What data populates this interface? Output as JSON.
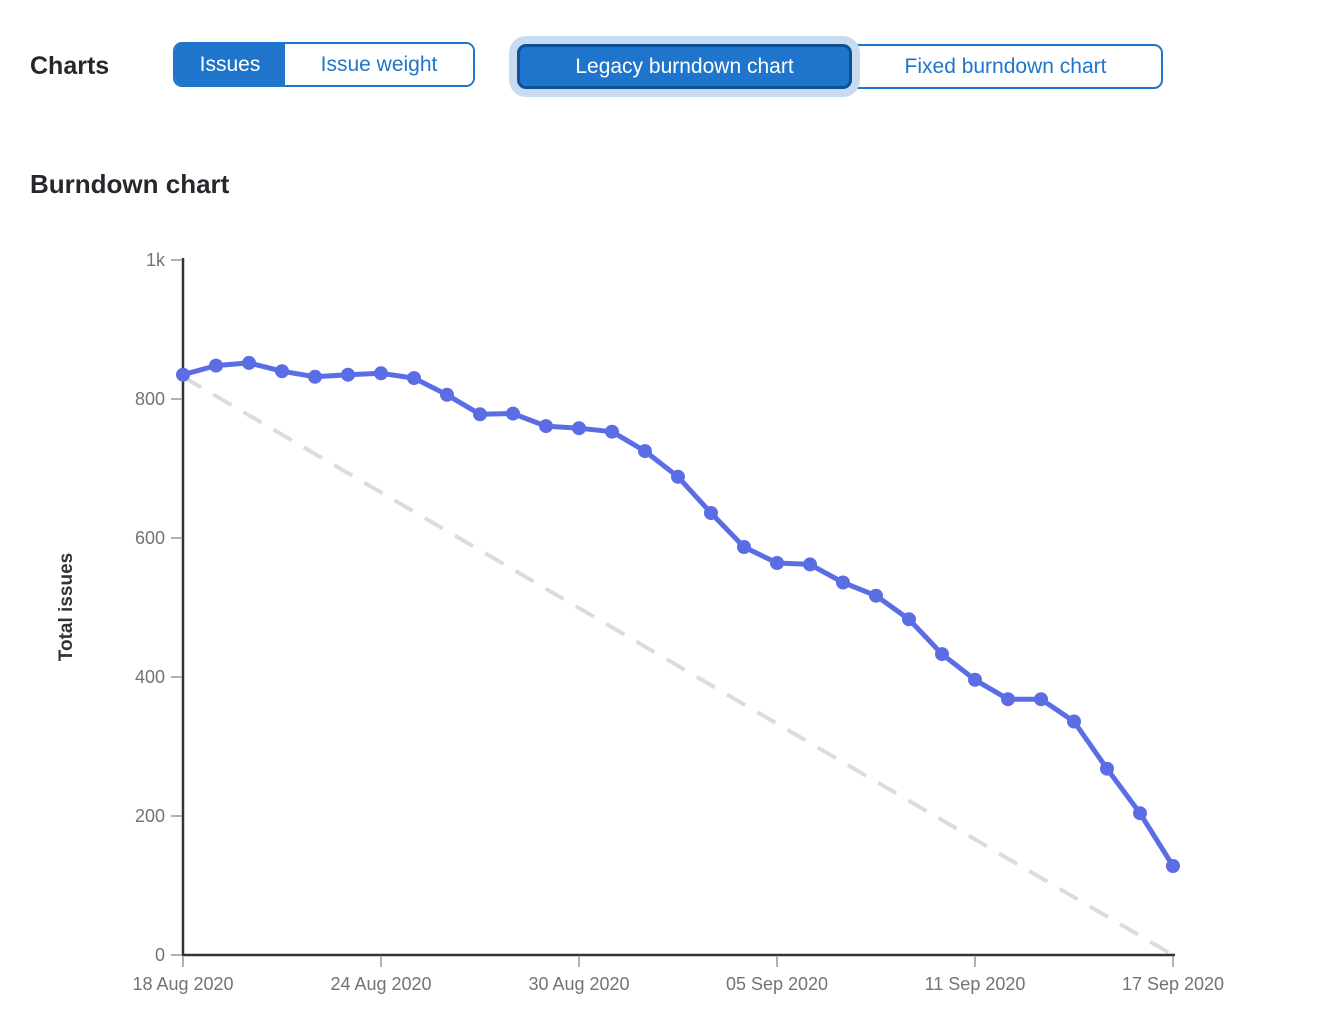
{
  "header": {
    "charts_label": "Charts",
    "metric_toggle": {
      "options": [
        {
          "label": "Issues",
          "selected": true
        },
        {
          "label": "Issue weight",
          "selected": false
        }
      ]
    },
    "chart_type_toggle": {
      "options": [
        {
          "label": "Legacy burndown chart",
          "selected": true,
          "focused": true
        },
        {
          "label": "Fixed burndown chart",
          "selected": false
        }
      ]
    }
  },
  "section": {
    "title": "Burndown chart"
  },
  "colors": {
    "accent_blue": "#1f75cb",
    "selected_border_blue": "#0b5394",
    "focus_ring_blue": "#c9dbf1",
    "series_line_blue": "#5b6de4",
    "guideline_gray": "#dcdcde",
    "axis_dark": "#35333a",
    "tick_mark_gray": "#b1b0b5",
    "tick_label_gray": "#737278",
    "heading_dark": "#28272d"
  },
  "chart_data": {
    "type": "line",
    "title": "Burndown chart",
    "xlabel": "",
    "ylabel": "Total issues",
    "ylim": [
      0,
      1000
    ],
    "grid": false,
    "legend_position": "none",
    "y_ticks": [
      {
        "value": 0,
        "label": "0"
      },
      {
        "value": 200,
        "label": "200"
      },
      {
        "value": 400,
        "label": "400"
      },
      {
        "value": 600,
        "label": "600"
      },
      {
        "value": 800,
        "label": "800"
      },
      {
        "value": 1000,
        "label": "1k"
      }
    ],
    "x_ticks": [
      {
        "day_index": 0,
        "label": "18 Aug 2020"
      },
      {
        "day_index": 6,
        "label": "24 Aug 2020"
      },
      {
        "day_index": 12,
        "label": "30 Aug 2020"
      },
      {
        "day_index": 18,
        "label": "05 Sep 2020"
      },
      {
        "day_index": 24,
        "label": "11 Sep 2020"
      },
      {
        "day_index": 30,
        "label": "17 Sep 2020"
      }
    ],
    "series": [
      {
        "name": "Total issues remaining",
        "type": "line+markers",
        "color": "#5b6de4",
        "x": [
          "18 Aug 2020",
          "19 Aug 2020",
          "20 Aug 2020",
          "21 Aug 2020",
          "22 Aug 2020",
          "23 Aug 2020",
          "24 Aug 2020",
          "25 Aug 2020",
          "26 Aug 2020",
          "27 Aug 2020",
          "28 Aug 2020",
          "29 Aug 2020",
          "30 Aug 2020",
          "31 Aug 2020",
          "01 Sep 2020",
          "02 Sep 2020",
          "03 Sep 2020",
          "04 Sep 2020",
          "05 Sep 2020",
          "06 Sep 2020",
          "07 Sep 2020",
          "08 Sep 2020",
          "09 Sep 2020",
          "10 Sep 2020",
          "11 Sep 2020",
          "12 Sep 2020",
          "13 Sep 2020",
          "14 Sep 2020",
          "15 Sep 2020",
          "16 Sep 2020",
          "17 Sep 2020"
        ],
        "values": [
          835,
          848,
          852,
          840,
          832,
          835,
          837,
          830,
          806,
          778,
          779,
          761,
          758,
          753,
          725,
          688,
          636,
          587,
          564,
          562,
          536,
          517,
          483,
          433,
          396,
          368,
          368,
          336,
          268,
          204,
          128
        ]
      },
      {
        "name": "Guideline",
        "type": "dashed-line",
        "color": "#dcdcde",
        "start": {
          "day_index": 0,
          "value": 832
        },
        "end": {
          "day_index": 30,
          "value": 0
        }
      }
    ]
  }
}
